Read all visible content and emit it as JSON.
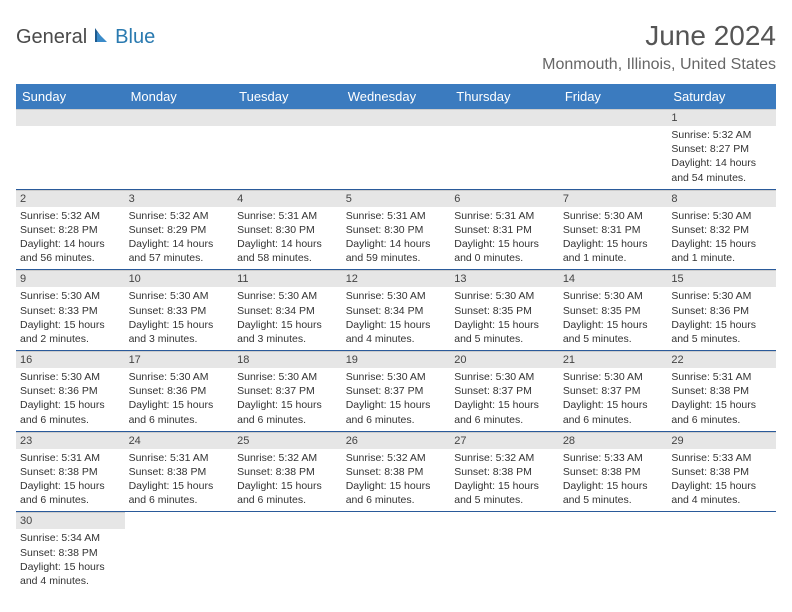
{
  "logo": {
    "dark": "General",
    "blue": "Blue"
  },
  "title": "June 2024",
  "location": "Monmouth, Illinois, United States",
  "colors": {
    "header_bg": "#3b7bbf",
    "header_text": "#ffffff",
    "daynum_bg": "#e6e6e6",
    "cell_border": "#2a5a9a",
    "logo_blue": "#2a7ab0"
  },
  "days_of_week": [
    "Sunday",
    "Monday",
    "Tuesday",
    "Wednesday",
    "Thursday",
    "Friday",
    "Saturday"
  ],
  "weeks": [
    [
      null,
      null,
      null,
      null,
      null,
      null,
      {
        "n": "1",
        "sr": "Sunrise: 5:32 AM",
        "ss": "Sunset: 8:27 PM",
        "dl": "Daylight: 14 hours and 54 minutes."
      }
    ],
    [
      {
        "n": "2",
        "sr": "Sunrise: 5:32 AM",
        "ss": "Sunset: 8:28 PM",
        "dl": "Daylight: 14 hours and 56 minutes."
      },
      {
        "n": "3",
        "sr": "Sunrise: 5:32 AM",
        "ss": "Sunset: 8:29 PM",
        "dl": "Daylight: 14 hours and 57 minutes."
      },
      {
        "n": "4",
        "sr": "Sunrise: 5:31 AM",
        "ss": "Sunset: 8:30 PM",
        "dl": "Daylight: 14 hours and 58 minutes."
      },
      {
        "n": "5",
        "sr": "Sunrise: 5:31 AM",
        "ss": "Sunset: 8:30 PM",
        "dl": "Daylight: 14 hours and 59 minutes."
      },
      {
        "n": "6",
        "sr": "Sunrise: 5:31 AM",
        "ss": "Sunset: 8:31 PM",
        "dl": "Daylight: 15 hours and 0 minutes."
      },
      {
        "n": "7",
        "sr": "Sunrise: 5:30 AM",
        "ss": "Sunset: 8:31 PM",
        "dl": "Daylight: 15 hours and 1 minute."
      },
      {
        "n": "8",
        "sr": "Sunrise: 5:30 AM",
        "ss": "Sunset: 8:32 PM",
        "dl": "Daylight: 15 hours and 1 minute."
      }
    ],
    [
      {
        "n": "9",
        "sr": "Sunrise: 5:30 AM",
        "ss": "Sunset: 8:33 PM",
        "dl": "Daylight: 15 hours and 2 minutes."
      },
      {
        "n": "10",
        "sr": "Sunrise: 5:30 AM",
        "ss": "Sunset: 8:33 PM",
        "dl": "Daylight: 15 hours and 3 minutes."
      },
      {
        "n": "11",
        "sr": "Sunrise: 5:30 AM",
        "ss": "Sunset: 8:34 PM",
        "dl": "Daylight: 15 hours and 3 minutes."
      },
      {
        "n": "12",
        "sr": "Sunrise: 5:30 AM",
        "ss": "Sunset: 8:34 PM",
        "dl": "Daylight: 15 hours and 4 minutes."
      },
      {
        "n": "13",
        "sr": "Sunrise: 5:30 AM",
        "ss": "Sunset: 8:35 PM",
        "dl": "Daylight: 15 hours and 5 minutes."
      },
      {
        "n": "14",
        "sr": "Sunrise: 5:30 AM",
        "ss": "Sunset: 8:35 PM",
        "dl": "Daylight: 15 hours and 5 minutes."
      },
      {
        "n": "15",
        "sr": "Sunrise: 5:30 AM",
        "ss": "Sunset: 8:36 PM",
        "dl": "Daylight: 15 hours and 5 minutes."
      }
    ],
    [
      {
        "n": "16",
        "sr": "Sunrise: 5:30 AM",
        "ss": "Sunset: 8:36 PM",
        "dl": "Daylight: 15 hours and 6 minutes."
      },
      {
        "n": "17",
        "sr": "Sunrise: 5:30 AM",
        "ss": "Sunset: 8:36 PM",
        "dl": "Daylight: 15 hours and 6 minutes."
      },
      {
        "n": "18",
        "sr": "Sunrise: 5:30 AM",
        "ss": "Sunset: 8:37 PM",
        "dl": "Daylight: 15 hours and 6 minutes."
      },
      {
        "n": "19",
        "sr": "Sunrise: 5:30 AM",
        "ss": "Sunset: 8:37 PM",
        "dl": "Daylight: 15 hours and 6 minutes."
      },
      {
        "n": "20",
        "sr": "Sunrise: 5:30 AM",
        "ss": "Sunset: 8:37 PM",
        "dl": "Daylight: 15 hours and 6 minutes."
      },
      {
        "n": "21",
        "sr": "Sunrise: 5:30 AM",
        "ss": "Sunset: 8:37 PM",
        "dl": "Daylight: 15 hours and 6 minutes."
      },
      {
        "n": "22",
        "sr": "Sunrise: 5:31 AM",
        "ss": "Sunset: 8:38 PM",
        "dl": "Daylight: 15 hours and 6 minutes."
      }
    ],
    [
      {
        "n": "23",
        "sr": "Sunrise: 5:31 AM",
        "ss": "Sunset: 8:38 PM",
        "dl": "Daylight: 15 hours and 6 minutes."
      },
      {
        "n": "24",
        "sr": "Sunrise: 5:31 AM",
        "ss": "Sunset: 8:38 PM",
        "dl": "Daylight: 15 hours and 6 minutes."
      },
      {
        "n": "25",
        "sr": "Sunrise: 5:32 AM",
        "ss": "Sunset: 8:38 PM",
        "dl": "Daylight: 15 hours and 6 minutes."
      },
      {
        "n": "26",
        "sr": "Sunrise: 5:32 AM",
        "ss": "Sunset: 8:38 PM",
        "dl": "Daylight: 15 hours and 6 minutes."
      },
      {
        "n": "27",
        "sr": "Sunrise: 5:32 AM",
        "ss": "Sunset: 8:38 PM",
        "dl": "Daylight: 15 hours and 5 minutes."
      },
      {
        "n": "28",
        "sr": "Sunrise: 5:33 AM",
        "ss": "Sunset: 8:38 PM",
        "dl": "Daylight: 15 hours and 5 minutes."
      },
      {
        "n": "29",
        "sr": "Sunrise: 5:33 AM",
        "ss": "Sunset: 8:38 PM",
        "dl": "Daylight: 15 hours and 4 minutes."
      }
    ],
    [
      {
        "n": "30",
        "sr": "Sunrise: 5:34 AM",
        "ss": "Sunset: 8:38 PM",
        "dl": "Daylight: 15 hours and 4 minutes."
      },
      null,
      null,
      null,
      null,
      null,
      null
    ]
  ]
}
